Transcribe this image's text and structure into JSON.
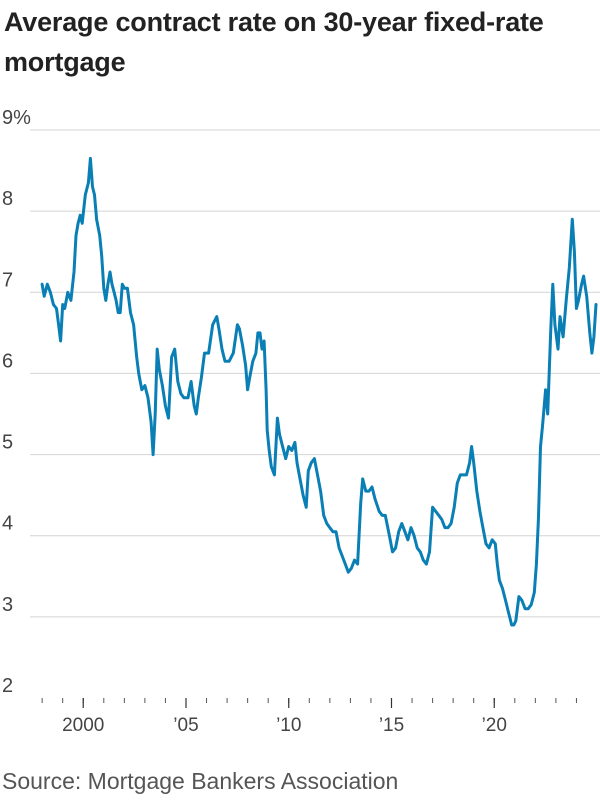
{
  "chart_data": {
    "type": "line",
    "title": "Average contract rate on 30-year fixed-rate mortgage",
    "xlabel": "",
    "ylabel": "",
    "xlim": [
      1997.75,
      2025.0
    ],
    "ylim": [
      2,
      9
    ],
    "grid": true,
    "y_ticks": [
      {
        "value": 9,
        "label": "9%"
      },
      {
        "value": 8,
        "label": "8"
      },
      {
        "value": 7,
        "label": "7"
      },
      {
        "value": 6,
        "label": "6"
      },
      {
        "value": 5,
        "label": "5"
      },
      {
        "value": 4,
        "label": "4"
      },
      {
        "value": 3,
        "label": "3"
      },
      {
        "value": 2,
        "label": "2"
      }
    ],
    "x_ticks": [
      {
        "value": 2000,
        "label": "2000"
      },
      {
        "value": 2005,
        "label": "’05"
      },
      {
        "value": 2010,
        "label": "’10"
      },
      {
        "value": 2015,
        "label": "’15"
      },
      {
        "value": 2020,
        "label": "’20"
      }
    ],
    "x_minor_ticks": [
      1998,
      1999,
      2000,
      2001,
      2002,
      2003,
      2004,
      2005,
      2006,
      2007,
      2008,
      2009,
      2010,
      2011,
      2012,
      2013,
      2014,
      2015,
      2016,
      2017,
      2018,
      2019,
      2020,
      2021,
      2022,
      2023,
      2024
    ],
    "line_color": "#0a7fb5",
    "grid_color": "#d4d4d4",
    "series": [
      {
        "points": [
          [
            1998.0,
            7.1
          ],
          [
            1998.1,
            6.95
          ],
          [
            1998.25,
            7.1
          ],
          [
            1998.4,
            7.0
          ],
          [
            1998.55,
            6.85
          ],
          [
            1998.7,
            6.8
          ],
          [
            1998.8,
            6.6
          ],
          [
            1998.9,
            6.4
          ],
          [
            1999.0,
            6.85
          ],
          [
            1999.1,
            6.8
          ],
          [
            1999.25,
            7.0
          ],
          [
            1999.4,
            6.9
          ],
          [
            1999.55,
            7.25
          ],
          [
            1999.65,
            7.7
          ],
          [
            1999.75,
            7.85
          ],
          [
            1999.85,
            7.95
          ],
          [
            1999.95,
            7.85
          ],
          [
            2000.1,
            8.2
          ],
          [
            2000.25,
            8.35
          ],
          [
            2000.35,
            8.65
          ],
          [
            2000.45,
            8.3
          ],
          [
            2000.55,
            8.2
          ],
          [
            2000.65,
            7.9
          ],
          [
            2000.8,
            7.7
          ],
          [
            2000.9,
            7.45
          ],
          [
            2001.0,
            7.05
          ],
          [
            2001.1,
            6.9
          ],
          [
            2001.2,
            7.1
          ],
          [
            2001.3,
            7.25
          ],
          [
            2001.4,
            7.1
          ],
          [
            2001.5,
            7.0
          ],
          [
            2001.6,
            6.9
          ],
          [
            2001.7,
            6.75
          ],
          [
            2001.8,
            6.75
          ],
          [
            2001.9,
            7.1
          ],
          [
            2002.0,
            7.05
          ],
          [
            2002.15,
            7.05
          ],
          [
            2002.3,
            6.75
          ],
          [
            2002.45,
            6.6
          ],
          [
            2002.6,
            6.2
          ],
          [
            2002.7,
            6.0
          ],
          [
            2002.85,
            5.8
          ],
          [
            2003.0,
            5.85
          ],
          [
            2003.15,
            5.7
          ],
          [
            2003.3,
            5.4
          ],
          [
            2003.4,
            5.0
          ],
          [
            2003.5,
            5.5
          ],
          [
            2003.6,
            6.3
          ],
          [
            2003.7,
            6.05
          ],
          [
            2003.85,
            5.85
          ],
          [
            2004.0,
            5.6
          ],
          [
            2004.15,
            5.45
          ],
          [
            2004.3,
            6.2
          ],
          [
            2004.45,
            6.3
          ],
          [
            2004.6,
            5.9
          ],
          [
            2004.75,
            5.75
          ],
          [
            2004.9,
            5.7
          ],
          [
            2005.1,
            5.7
          ],
          [
            2005.25,
            5.9
          ],
          [
            2005.4,
            5.6
          ],
          [
            2005.5,
            5.5
          ],
          [
            2005.6,
            5.7
          ],
          [
            2005.75,
            5.95
          ],
          [
            2005.9,
            6.25
          ],
          [
            2006.1,
            6.25
          ],
          [
            2006.3,
            6.6
          ],
          [
            2006.5,
            6.7
          ],
          [
            2006.6,
            6.55
          ],
          [
            2006.75,
            6.3
          ],
          [
            2006.9,
            6.15
          ],
          [
            2007.1,
            6.15
          ],
          [
            2007.3,
            6.25
          ],
          [
            2007.5,
            6.6
          ],
          [
            2007.6,
            6.55
          ],
          [
            2007.75,
            6.35
          ],
          [
            2007.9,
            6.1
          ],
          [
            2008.0,
            5.8
          ],
          [
            2008.1,
            5.95
          ],
          [
            2008.25,
            6.15
          ],
          [
            2008.4,
            6.25
          ],
          [
            2008.5,
            6.5
          ],
          [
            2008.6,
            6.5
          ],
          [
            2008.7,
            6.3
          ],
          [
            2008.8,
            6.4
          ],
          [
            2008.9,
            5.8
          ],
          [
            2008.95,
            5.3
          ],
          [
            2009.05,
            5.05
          ],
          [
            2009.15,
            4.85
          ],
          [
            2009.3,
            4.75
          ],
          [
            2009.45,
            5.45
          ],
          [
            2009.55,
            5.25
          ],
          [
            2009.7,
            5.1
          ],
          [
            2009.85,
            4.95
          ],
          [
            2010.0,
            5.1
          ],
          [
            2010.15,
            5.05
          ],
          [
            2010.3,
            5.15
          ],
          [
            2010.4,
            4.9
          ],
          [
            2010.55,
            4.7
          ],
          [
            2010.7,
            4.5
          ],
          [
            2010.85,
            4.35
          ],
          [
            2010.95,
            4.8
          ],
          [
            2011.1,
            4.9
          ],
          [
            2011.25,
            4.95
          ],
          [
            2011.4,
            4.75
          ],
          [
            2011.55,
            4.55
          ],
          [
            2011.7,
            4.25
          ],
          [
            2011.85,
            4.15
          ],
          [
            2012.0,
            4.1
          ],
          [
            2012.15,
            4.05
          ],
          [
            2012.3,
            4.05
          ],
          [
            2012.45,
            3.85
          ],
          [
            2012.6,
            3.75
          ],
          [
            2012.75,
            3.65
          ],
          [
            2012.9,
            3.55
          ],
          [
            2013.05,
            3.6
          ],
          [
            2013.2,
            3.7
          ],
          [
            2013.35,
            3.65
          ],
          [
            2013.5,
            4.4
          ],
          [
            2013.6,
            4.7
          ],
          [
            2013.75,
            4.55
          ],
          [
            2013.9,
            4.55
          ],
          [
            2014.05,
            4.6
          ],
          [
            2014.2,
            4.45
          ],
          [
            2014.4,
            4.3
          ],
          [
            2014.55,
            4.25
          ],
          [
            2014.7,
            4.25
          ],
          [
            2014.9,
            4.0
          ],
          [
            2015.05,
            3.8
          ],
          [
            2015.2,
            3.85
          ],
          [
            2015.35,
            4.05
          ],
          [
            2015.5,
            4.15
          ],
          [
            2015.65,
            4.05
          ],
          [
            2015.8,
            3.95
          ],
          [
            2015.95,
            4.1
          ],
          [
            2016.1,
            4.0
          ],
          [
            2016.25,
            3.85
          ],
          [
            2016.4,
            3.8
          ],
          [
            2016.55,
            3.7
          ],
          [
            2016.7,
            3.65
          ],
          [
            2016.85,
            3.8
          ],
          [
            2017.0,
            4.35
          ],
          [
            2017.15,
            4.3
          ],
          [
            2017.3,
            4.25
          ],
          [
            2017.45,
            4.2
          ],
          [
            2017.6,
            4.1
          ],
          [
            2017.75,
            4.1
          ],
          [
            2017.9,
            4.15
          ],
          [
            2018.05,
            4.35
          ],
          [
            2018.2,
            4.65
          ],
          [
            2018.35,
            4.75
          ],
          [
            2018.5,
            4.75
          ],
          [
            2018.65,
            4.75
          ],
          [
            2018.8,
            4.9
          ],
          [
            2018.9,
            5.1
          ],
          [
            2019.0,
            4.9
          ],
          [
            2019.15,
            4.55
          ],
          [
            2019.3,
            4.3
          ],
          [
            2019.45,
            4.1
          ],
          [
            2019.6,
            3.9
          ],
          [
            2019.75,
            3.85
          ],
          [
            2019.9,
            3.95
          ],
          [
            2020.05,
            3.9
          ],
          [
            2020.15,
            3.65
          ],
          [
            2020.25,
            3.45
          ],
          [
            2020.4,
            3.35
          ],
          [
            2020.55,
            3.2
          ],
          [
            2020.7,
            3.05
          ],
          [
            2020.85,
            2.9
          ],
          [
            2020.95,
            2.9
          ],
          [
            2021.05,
            2.95
          ],
          [
            2021.2,
            3.25
          ],
          [
            2021.35,
            3.2
          ],
          [
            2021.5,
            3.1
          ],
          [
            2021.65,
            3.1
          ],
          [
            2021.8,
            3.15
          ],
          [
            2021.95,
            3.3
          ],
          [
            2022.05,
            3.65
          ],
          [
            2022.15,
            4.2
          ],
          [
            2022.25,
            5.1
          ],
          [
            2022.35,
            5.35
          ],
          [
            2022.5,
            5.8
          ],
          [
            2022.6,
            5.5
          ],
          [
            2022.75,
            6.55
          ],
          [
            2022.85,
            7.1
          ],
          [
            2022.95,
            6.6
          ],
          [
            2023.1,
            6.3
          ],
          [
            2023.2,
            6.7
          ],
          [
            2023.35,
            6.45
          ],
          [
            2023.5,
            6.9
          ],
          [
            2023.65,
            7.3
          ],
          [
            2023.8,
            7.9
          ],
          [
            2023.9,
            7.5
          ],
          [
            2024.0,
            6.8
          ],
          [
            2024.1,
            6.9
          ],
          [
            2024.25,
            7.1
          ],
          [
            2024.35,
            7.2
          ],
          [
            2024.5,
            6.95
          ],
          [
            2024.65,
            6.5
          ],
          [
            2024.75,
            6.25
          ],
          [
            2024.85,
            6.45
          ],
          [
            2024.95,
            6.85
          ]
        ]
      }
    ]
  },
  "source": "Source: Mortgage Bankers Association"
}
